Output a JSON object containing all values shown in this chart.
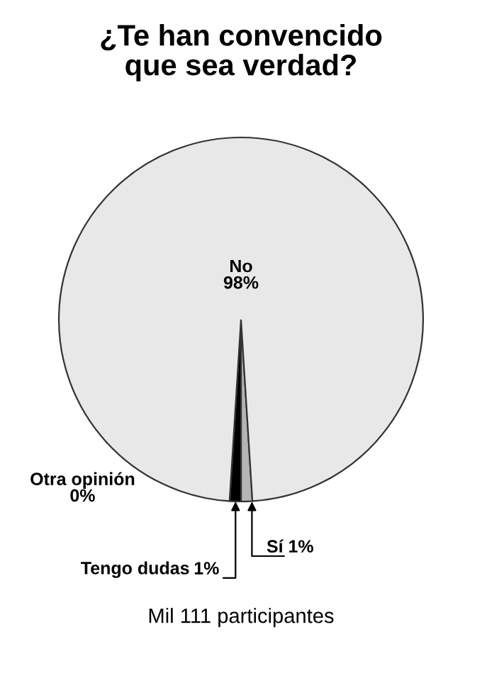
{
  "chart_data": {
    "type": "pie",
    "title": "¿Te han convencido\nque sea verdad?",
    "categories": [
      "Sí",
      "Tengo dudas",
      "Otra opinión",
      "No"
    ],
    "values": [
      1,
      1,
      0,
      98
    ],
    "colors": [
      "#b4b4b4",
      "#000000",
      "#ffffff",
      "#e8e8e8"
    ],
    "value_labels": [
      "1%",
      "1%",
      "0%",
      "98%"
    ],
    "annotations": [
      "Mil 111 participantes"
    ]
  }
}
